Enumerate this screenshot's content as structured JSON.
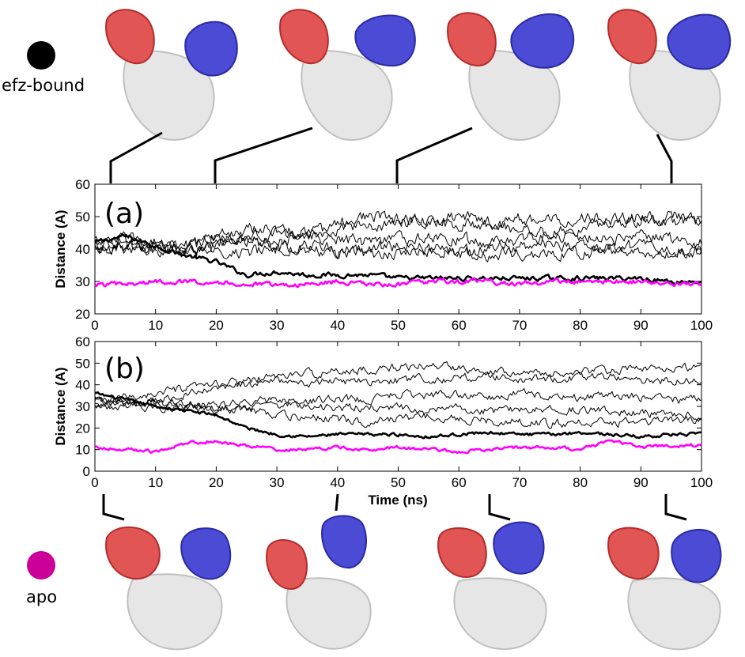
{
  "legend": [
    {
      "label": "efz-bound",
      "color": "#000000"
    },
    {
      "label": "apo",
      "color": "#cc0099"
    }
  ],
  "x_axis_label": "Time (ns)",
  "chart_data": [
    {
      "type": "line",
      "panel_label": "(a)",
      "xlabel": "Time (ns)",
      "ylabel": "Distance (A)",
      "xlim": [
        0,
        100
      ],
      "ylim": [
        20,
        60
      ],
      "xticks": [
        0,
        10,
        20,
        30,
        40,
        50,
        60,
        70,
        80,
        90,
        100
      ],
      "yticks": [
        20,
        30,
        40,
        50,
        60
      ],
      "x": [
        0,
        5,
        10,
        15,
        20,
        25,
        30,
        35,
        40,
        45,
        50,
        55,
        60,
        65,
        70,
        75,
        80,
        85,
        90,
        95,
        100
      ],
      "series": [
        {
          "color": "#000000",
          "style": "thick",
          "values": [
            42,
            44,
            41,
            38,
            36,
            32,
            33,
            32,
            32,
            32,
            31,
            31,
            31,
            31,
            31,
            31,
            31,
            31,
            31,
            30,
            30
          ]
        },
        {
          "color": "#000000",
          "style": "thin",
          "values": [
            41,
            43,
            42,
            40,
            41,
            43,
            45,
            44,
            48,
            50,
            49,
            48,
            47,
            48,
            46,
            45,
            46,
            48,
            49,
            50,
            50
          ]
        },
        {
          "color": "#000000",
          "style": "thin",
          "values": [
            42,
            43,
            40,
            41,
            44,
            46,
            46,
            45,
            46,
            47,
            48,
            49,
            50,
            48,
            49,
            49,
            50,
            49,
            50,
            48,
            49
          ]
        },
        {
          "color": "#000000",
          "style": "thin",
          "values": [
            40,
            41,
            40,
            39,
            42,
            43,
            42,
            44,
            43,
            42,
            43,
            44,
            43,
            42,
            43,
            44,
            44,
            43,
            44,
            43,
            42
          ]
        },
        {
          "color": "#000000",
          "style": "thin",
          "values": [
            43,
            42,
            39,
            40,
            43,
            42,
            41,
            40,
            39,
            40,
            41,
            40,
            39,
            40,
            41,
            42,
            41,
            40,
            41,
            40,
            39
          ]
        },
        {
          "color": "#000000",
          "style": "thin",
          "values": [
            41,
            40,
            41,
            40,
            40,
            39,
            40,
            41,
            40,
            38,
            39,
            40,
            39,
            38,
            39,
            38,
            39,
            40,
            39,
            39,
            38
          ]
        },
        {
          "color": "#ff00ff",
          "style": "thick",
          "values": [
            29,
            29,
            30,
            30,
            30,
            29,
            29,
            29,
            30,
            29,
            29,
            30,
            30,
            30,
            29,
            30,
            30,
            30,
            30,
            29,
            29
          ]
        }
      ]
    },
    {
      "type": "line",
      "panel_label": "(b)",
      "xlabel": "Time (ns)",
      "ylabel": "Distance (A)",
      "xlim": [
        0,
        100
      ],
      "ylim": [
        0,
        60
      ],
      "xticks": [
        0,
        10,
        20,
        30,
        40,
        50,
        60,
        70,
        80,
        90,
        100
      ],
      "yticks": [
        0,
        10,
        20,
        30,
        40,
        50,
        60
      ],
      "x": [
        0,
        5,
        10,
        15,
        20,
        25,
        30,
        35,
        40,
        45,
        50,
        55,
        60,
        65,
        70,
        75,
        80,
        85,
        90,
        95,
        100
      ],
      "series": [
        {
          "color": "#000000",
          "style": "thick",
          "values": [
            36,
            33,
            30,
            28,
            26,
            20,
            17,
            16,
            17,
            17,
            17,
            16,
            17,
            18,
            17,
            17,
            18,
            17,
            16,
            17,
            17
          ]
        },
        {
          "color": "#000000",
          "style": "thin",
          "values": [
            32,
            34,
            36,
            38,
            40,
            42,
            44,
            45,
            46,
            47,
            48,
            49,
            48,
            47,
            46,
            45,
            46,
            47,
            47,
            48,
            48
          ]
        },
        {
          "color": "#000000",
          "style": "thin",
          "values": [
            30,
            32,
            33,
            35,
            38,
            40,
            42,
            40,
            42,
            41,
            42,
            43,
            43,
            44,
            42,
            43,
            43,
            44,
            42,
            42,
            41
          ]
        },
        {
          "color": "#000000",
          "style": "thin",
          "values": [
            34,
            31,
            32,
            31,
            30,
            32,
            33,
            32,
            34,
            33,
            36,
            35,
            36,
            34,
            36,
            35,
            34,
            35,
            34,
            33,
            33
          ]
        },
        {
          "color": "#000000",
          "style": "thin",
          "values": [
            31,
            30,
            29,
            30,
            29,
            30,
            31,
            30,
            29,
            30,
            29,
            28,
            29,
            28,
            28,
            29,
            28,
            28,
            27,
            26,
            26
          ]
        },
        {
          "color": "#000000",
          "style": "thin",
          "values": [
            33,
            32,
            31,
            30,
            29,
            28,
            26,
            25,
            24,
            23,
            24,
            25,
            24,
            23,
            23,
            22,
            23,
            22,
            23,
            23,
            24
          ]
        },
        {
          "color": "#ff00ff",
          "style": "thick",
          "values": [
            11,
            10,
            9,
            13,
            14,
            12,
            10,
            10,
            11,
            10,
            11,
            10,
            9,
            10,
            11,
            11,
            10,
            14,
            11,
            12,
            12
          ]
        }
      ]
    }
  ]
}
